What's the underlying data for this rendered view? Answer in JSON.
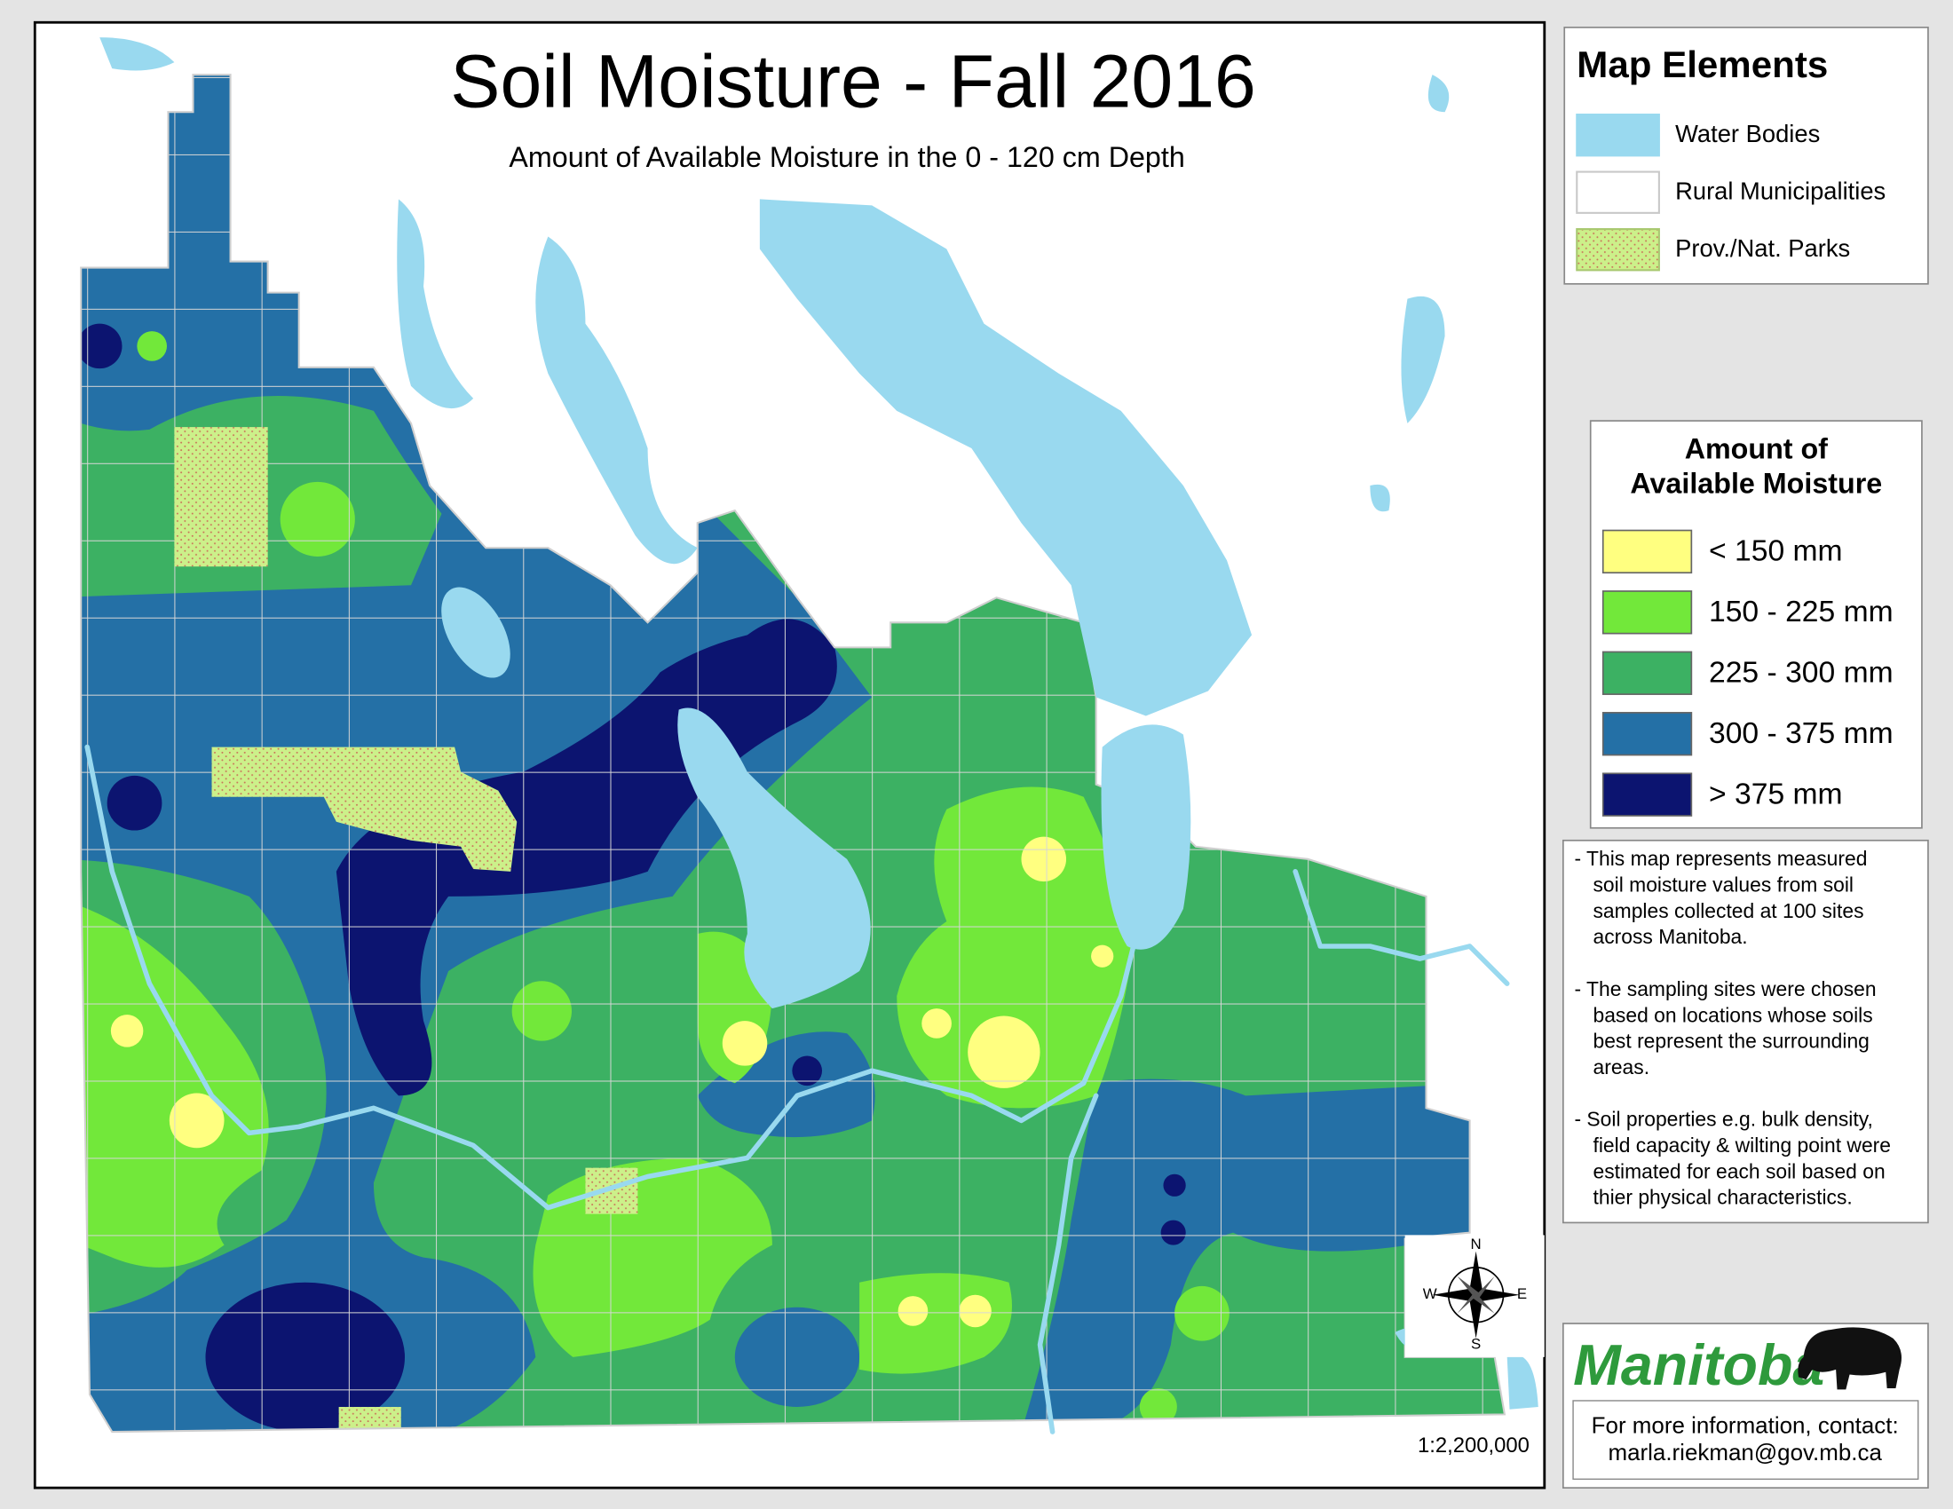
{
  "title": "Soil Moisture - Fall 2016",
  "subtitle": "Amount of Available Moisture in the 0 - 120 cm Depth",
  "map_elements": {
    "title": "Map Elements",
    "items": [
      {
        "label": "Water Bodies",
        "color": "#99d9ef"
      },
      {
        "label": "Rural Municipalities",
        "color": "#ffffff"
      },
      {
        "label": "Prov./Nat. Parks",
        "color": "#ccf08a"
      }
    ]
  },
  "moisture_legend": {
    "title_lines": [
      "Amount of",
      "Available Moisture"
    ],
    "classes": [
      {
        "label": "< 150 mm",
        "color": "#ffff80"
      },
      {
        "label": "150 - 225 mm",
        "color": "#72e83a"
      },
      {
        "label": "225 - 300 mm",
        "color": "#3cb163"
      },
      {
        "label": "300 - 375 mm",
        "color": "#2470a6"
      },
      {
        "label": "> 375 mm",
        "color": "#0c1470"
      }
    ]
  },
  "notes": [
    {
      "lines": [
        "- This map represents measured",
        "soil moisture values from soil",
        "samples collected at 100 sites",
        "across Manitoba."
      ]
    },
    {
      "lines": [
        "- The sampling sites were chosen",
        "based on locations whose soils",
        "best represent the surrounding",
        "areas."
      ]
    },
    {
      "lines": [
        "- Soil properties e.g. bulk density,",
        "field capacity & wilting point were",
        "estimated for each soil based on",
        "thier physical characteristics."
      ]
    }
  ],
  "logo": "Manitoba",
  "contact": [
    "For more information, contact:",
    "marla.riekman@gov.mb.ca"
  ],
  "scale": "1:2,200,000",
  "compass": {
    "n": "N",
    "s": "S",
    "e": "E",
    "w": "W"
  }
}
